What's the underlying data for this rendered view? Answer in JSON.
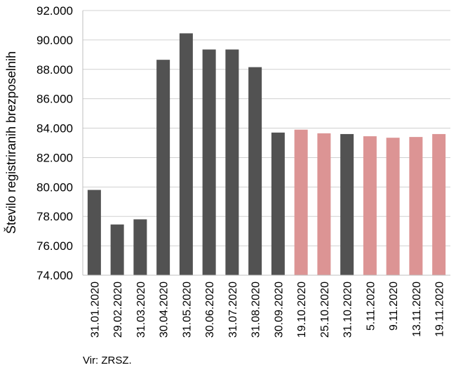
{
  "chart_data": {
    "type": "bar",
    "title": "",
    "xlabel": "",
    "ylabel": "Število registriranih brezposelnih",
    "ylim": [
      74000,
      92000
    ],
    "yticks": [
      "74.000",
      "76.000",
      "78.000",
      "80.000",
      "82.000",
      "84.000",
      "86.000",
      "88.000",
      "90.000",
      "92.000"
    ],
    "grid": true,
    "categories": [
      "31.01.2020",
      "29.02.2020",
      "31.03.2020",
      "30.04.2020",
      "31.05.2020",
      "30.06.2020",
      "31.07.2020",
      "31.08.2020",
      "30.09.2020",
      "19.10.2020",
      "25.10.2020",
      "31.10.2020",
      "5.11.2020",
      "9.11.2020",
      "13.11.2020",
      "19.11.2020"
    ],
    "values": [
      79800,
      77450,
      77800,
      88650,
      90450,
      89350,
      89350,
      88150,
      83700,
      83900,
      83650,
      83600,
      83450,
      83350,
      83400,
      83600
    ],
    "colors": [
      "#525252",
      "#525252",
      "#525252",
      "#525252",
      "#525252",
      "#525252",
      "#525252",
      "#525252",
      "#525252",
      "#dc9494",
      "#dc9494",
      "#525252",
      "#dc9494",
      "#dc9494",
      "#dc9494",
      "#dc9494"
    ]
  },
  "source": "Vir: ZRSZ."
}
